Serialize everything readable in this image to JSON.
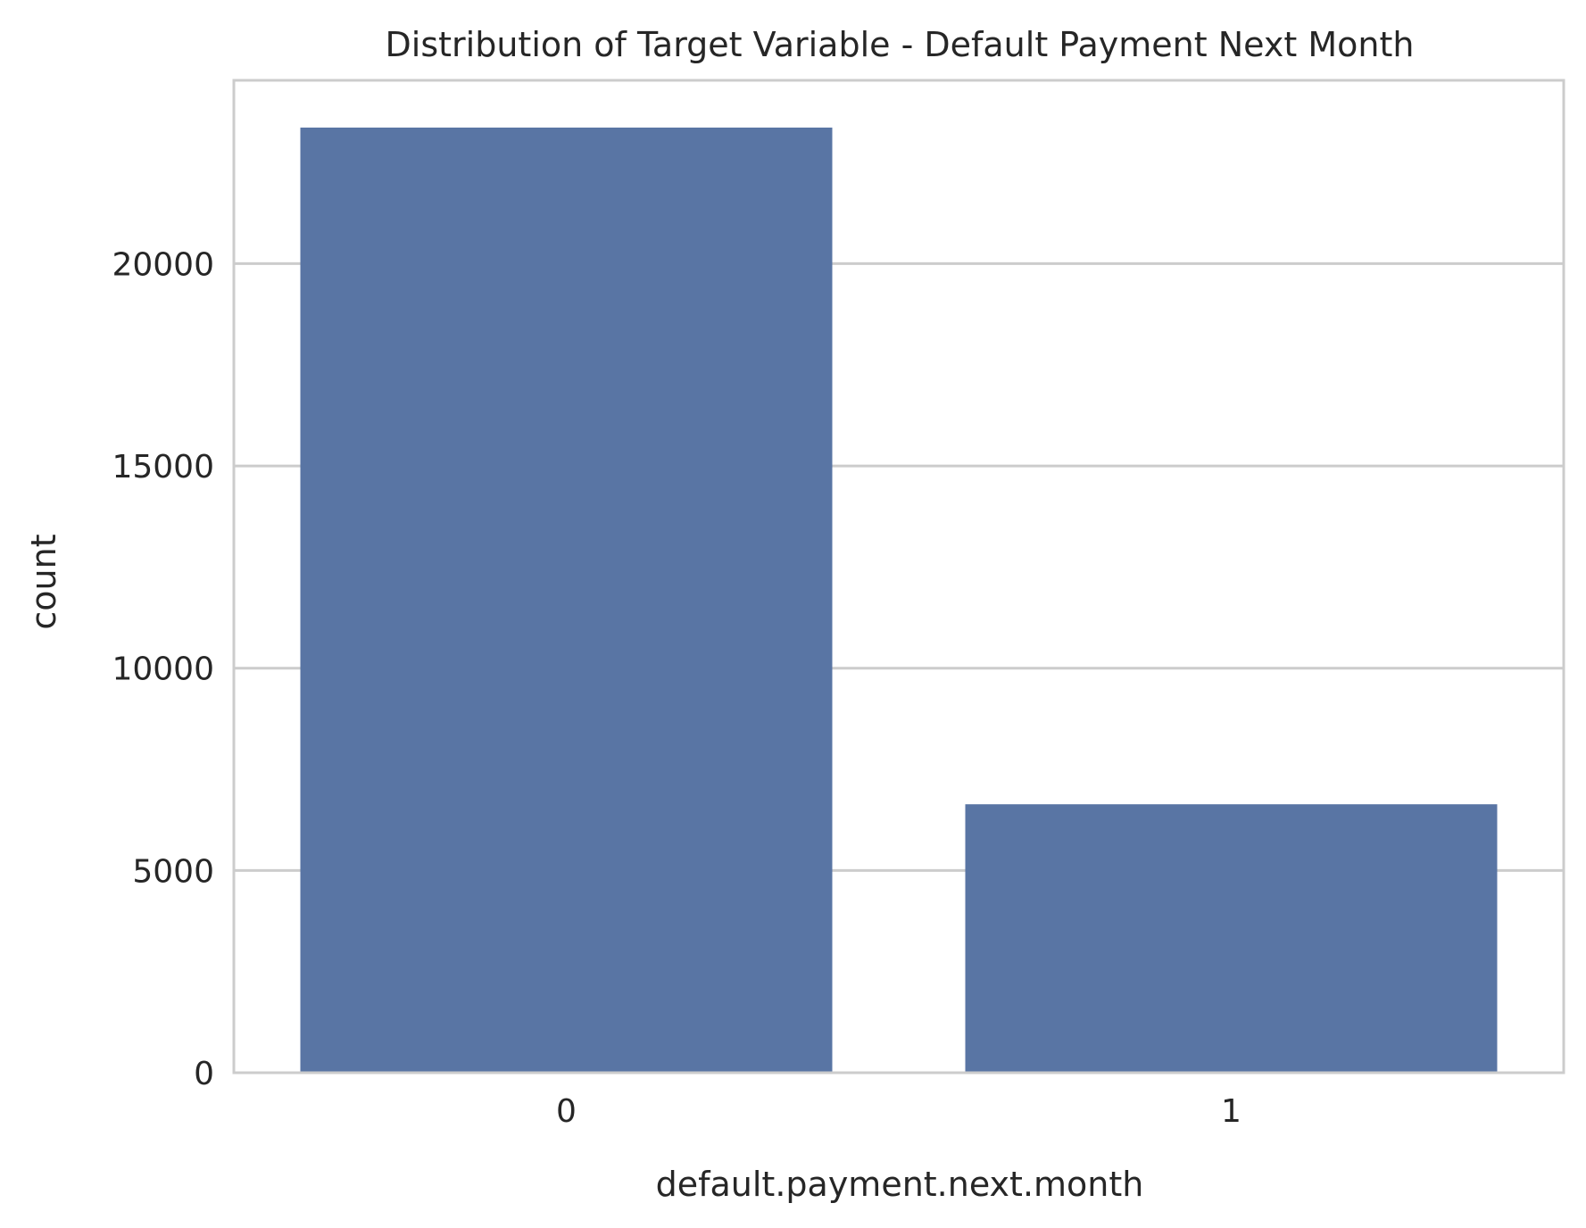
{
  "chart_data": {
    "type": "bar",
    "title": "Distribution of Target Variable - Default Payment Next Month",
    "xlabel": "default.payment.next.month",
    "ylabel": "count",
    "categories": [
      "0",
      "1"
    ],
    "values": [
      23364,
      6636
    ],
    "ylim": [
      0,
      24532
    ],
    "yticks": [
      0,
      5000,
      10000,
      15000,
      20000
    ],
    "grid": true,
    "legend": "none",
    "bar_color": "#5975a4",
    "grid_color": "#cccccc",
    "text_color": "#262626"
  }
}
